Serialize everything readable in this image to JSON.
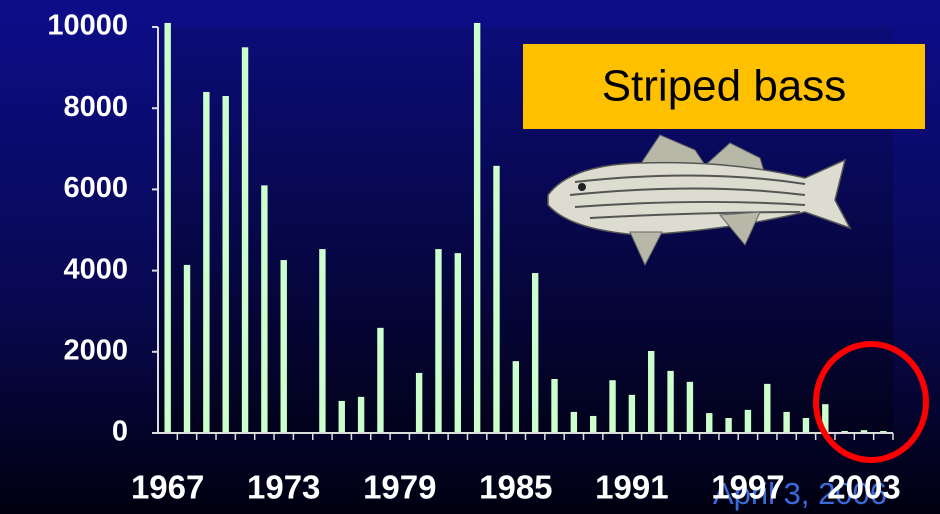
{
  "chart_data": {
    "type": "bar",
    "annotation": "Striped bass",
    "date": "April 3, 2006",
    "categories": [
      "1967",
      null,
      null,
      null,
      null,
      null,
      "1973",
      null,
      null,
      null,
      null,
      null,
      "1979",
      null,
      null,
      null,
      null,
      null,
      "1985",
      null,
      null,
      null,
      null,
      null,
      "1991",
      null,
      null,
      null,
      null,
      null,
      "1997",
      null,
      null,
      null,
      null,
      null,
      "2003",
      null
    ],
    "values": [
      10100,
      4140,
      8400,
      8300,
      9500,
      6100,
      4260,
      null,
      4530,
      790,
      890,
      2590,
      null,
      1480,
      4530,
      4430,
      10100,
      6580,
      1770,
      3940,
      1330,
      520,
      420,
      1300,
      940,
      2020,
      1530,
      1260,
      490,
      370,
      570,
      1210,
      520,
      370,
      710,
      50,
      70,
      50
    ],
    "color": "#ccffcc",
    "ylim": [
      0,
      10000
    ],
    "yticks": [
      0,
      2000,
      4000,
      6000,
      8000,
      10000
    ]
  }
}
